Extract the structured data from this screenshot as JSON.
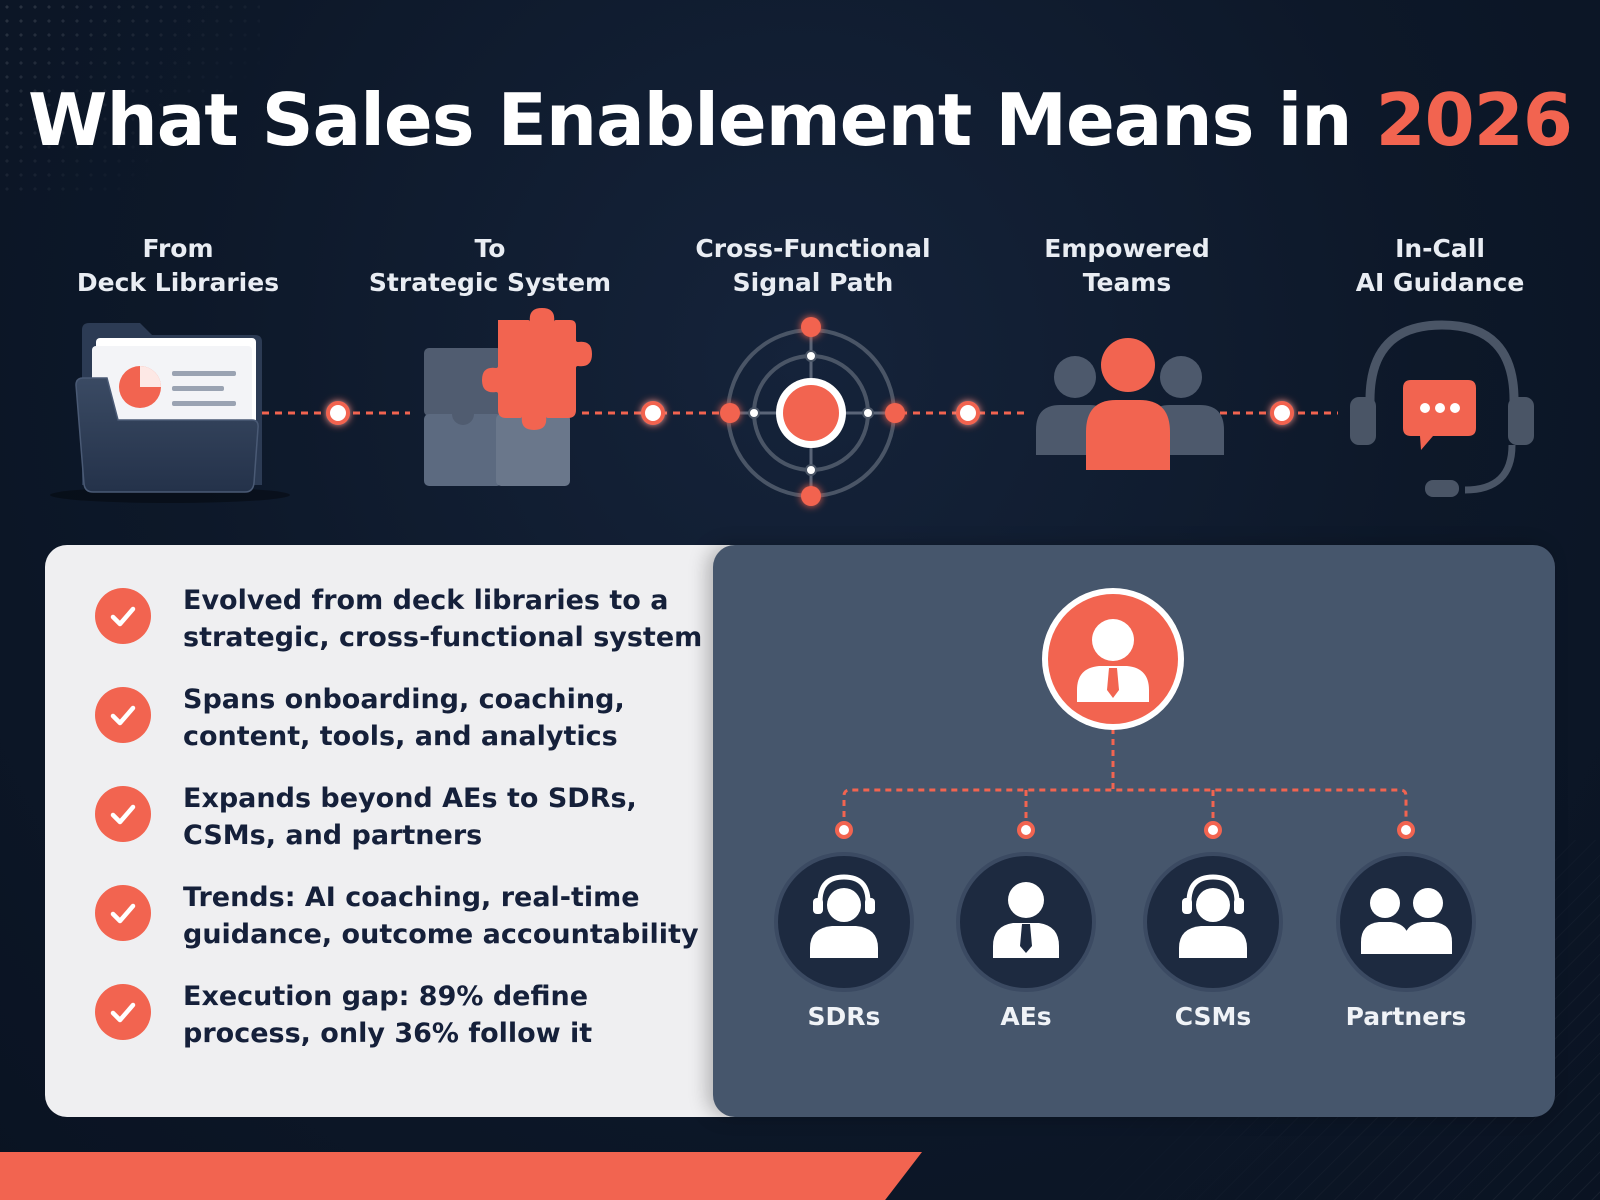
{
  "title": {
    "main": "What Sales Enablement Means in ",
    "accent": "2026"
  },
  "colors": {
    "accent": "#f26450",
    "background": "#0d1829",
    "panel_light": "#efeff1",
    "panel_dark": "#46566c",
    "icon_slate": "#4a5566"
  },
  "steps": [
    {
      "line1": "From",
      "line2": "Deck Libraries",
      "icon": "folder-chart-icon"
    },
    {
      "line1": "To",
      "line2": "Strategic System",
      "icon": "puzzle-icon"
    },
    {
      "line1": "Cross-Functional",
      "line2": "Signal Path",
      "icon": "target-icon"
    },
    {
      "line1": "Empowered",
      "line2": "Teams",
      "icon": "team-icon"
    },
    {
      "line1": "In-Call",
      "line2": "AI Guidance",
      "icon": "headset-chat-icon"
    }
  ],
  "bullets": [
    "Evolved from deck libraries to a strategic, cross-functional system",
    "Spans onboarding, coaching, content, tools, and analytics",
    "Expands beyond AEs to SDRs, CSMs, and partners",
    "Trends: AI coaching, real-time guidance, outcome accountability",
    "Execution gap: 89% define process, only 36% follow it"
  ],
  "org": {
    "top_icon": "manager-icon",
    "roles": [
      {
        "label": "SDRs",
        "icon": "headset-person-icon"
      },
      {
        "label": "AEs",
        "icon": "business-person-icon"
      },
      {
        "label": "CSMs",
        "icon": "headset-person-icon"
      },
      {
        "label": "Partners",
        "icon": "two-people-icon"
      }
    ]
  }
}
